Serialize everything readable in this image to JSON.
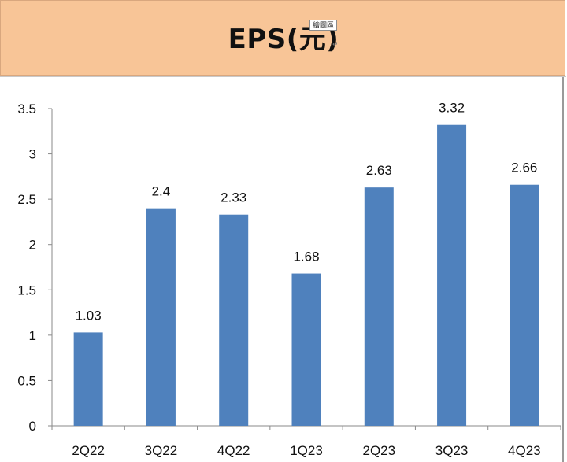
{
  "header": {
    "title": "EPS(元)",
    "tag_label": "繪圖區",
    "return_mark": "↵"
  },
  "colors": {
    "title_band": "#f8c597",
    "bar": "#4f81bd"
  },
  "chart_data": {
    "type": "bar",
    "title": "EPS(元)",
    "xlabel": "",
    "ylabel": "",
    "categories": [
      "2Q22",
      "3Q22",
      "4Q22",
      "1Q23",
      "2Q23",
      "3Q23",
      "4Q23"
    ],
    "values": [
      1.03,
      2.4,
      2.33,
      1.68,
      2.63,
      3.32,
      2.66
    ],
    "data_labels": [
      "1.03",
      "2.4",
      "2.33",
      "1.68",
      "2.63",
      "3.32",
      "2.66"
    ],
    "ylim": [
      0,
      3.5
    ],
    "yticks": [
      0,
      0.5,
      1,
      1.5,
      2,
      2.5,
      3,
      3.5
    ],
    "ytick_labels": [
      "0",
      "0.5",
      "1",
      "1.5",
      "2",
      "2.5",
      "3",
      "3.5"
    ],
    "grid": false,
    "legend": "none"
  }
}
